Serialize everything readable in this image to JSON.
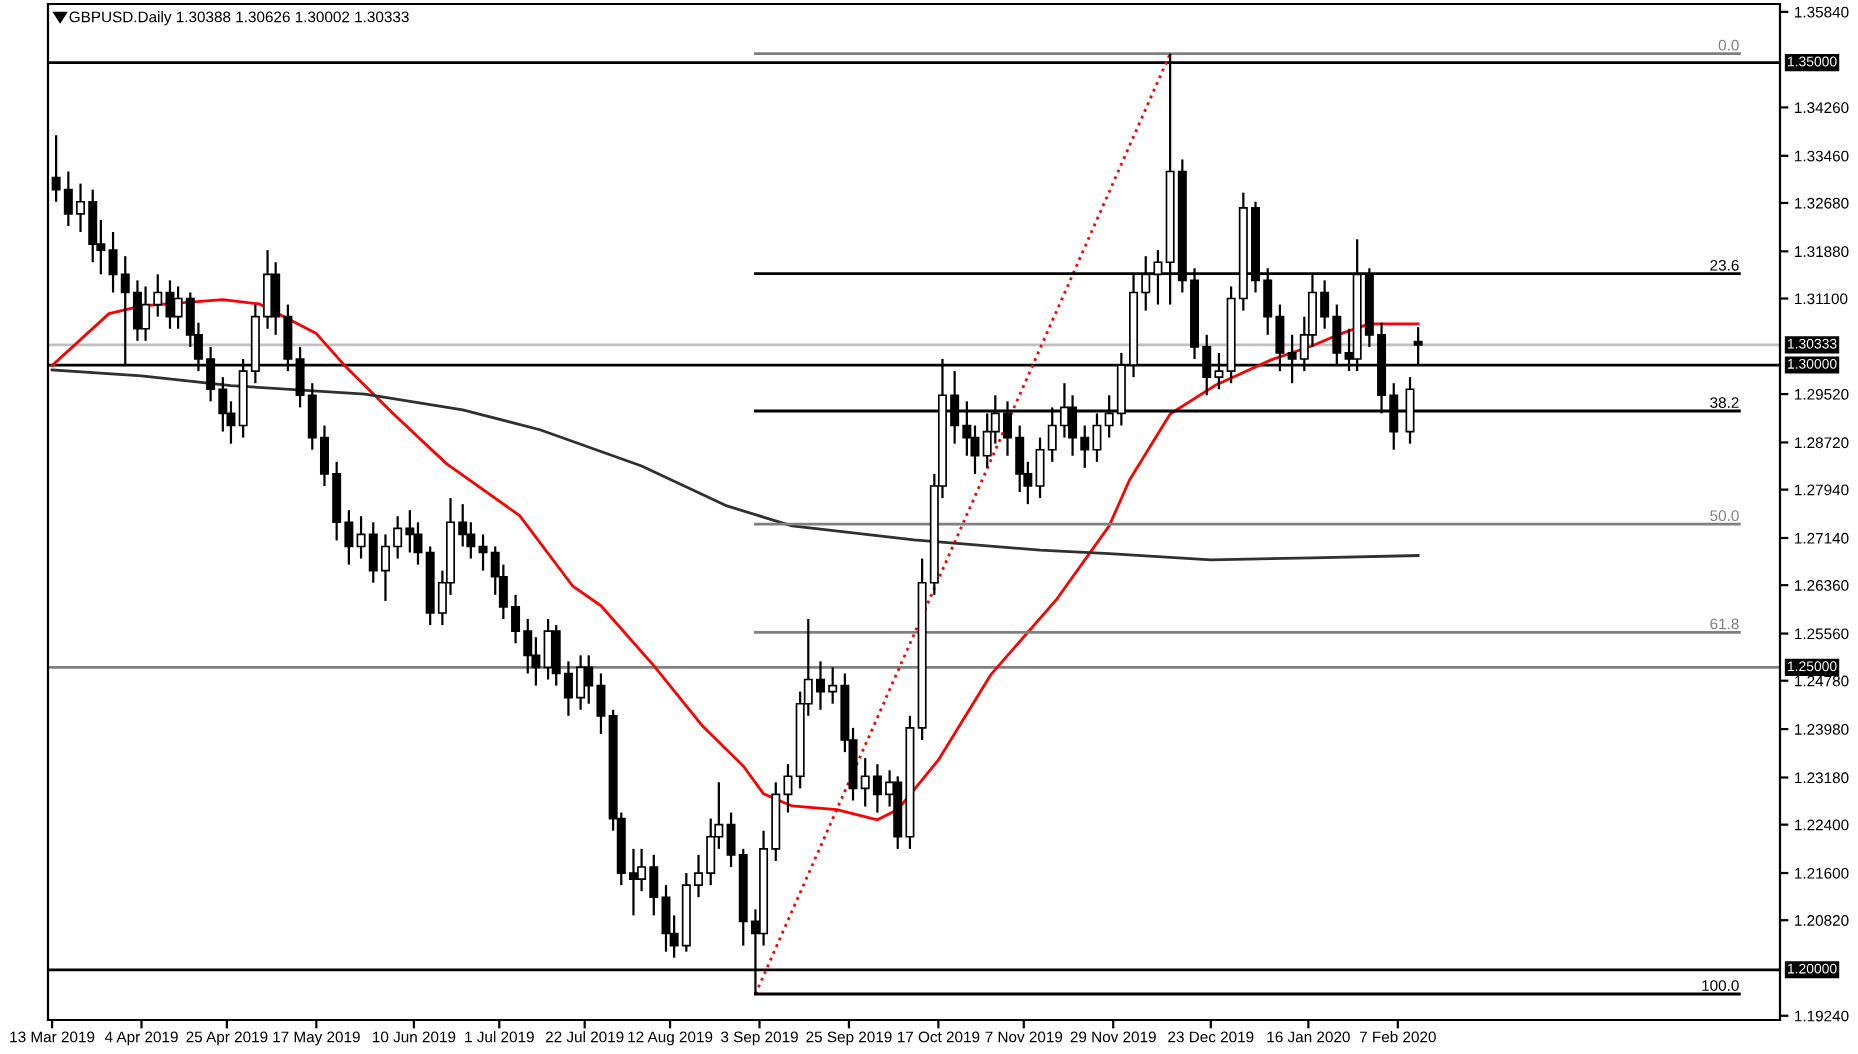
{
  "chart_data": {
    "type": "candlestick",
    "title": "GBPUSD.Daily 1.30388 1.30626 1.30002 1.30333",
    "x": [
      "2019-03-14",
      "2019-03-17",
      "2019-03-20",
      "2019-03-23",
      "2019-03-25",
      "2019-03-28",
      "2019-03-31",
      "2019-04-03",
      "2019-04-05",
      "2019-04-08",
      "2019-04-11",
      "2019-04-13",
      "2019-04-16",
      "2019-04-18",
      "2019-04-21",
      "2019-04-24",
      "2019-04-26",
      "2019-04-29",
      "2019-05-02",
      "2019-05-05",
      "2019-05-07",
      "2019-05-10",
      "2019-05-13",
      "2019-05-16",
      "2019-05-19",
      "2019-05-22",
      "2019-05-25",
      "2019-05-28",
      "2019-05-31",
      "2019-06-03",
      "2019-06-06",
      "2019-06-09",
      "2019-06-11",
      "2019-06-14",
      "2019-06-17",
      "2019-06-19",
      "2019-06-22",
      "2019-06-24",
      "2019-06-27",
      "2019-06-30",
      "2019-07-02",
      "2019-07-05",
      "2019-07-08",
      "2019-07-10",
      "2019-07-13",
      "2019-07-15",
      "2019-07-18",
      "2019-07-21",
      "2019-07-23",
      "2019-07-26",
      "2019-07-29",
      "2019-07-31",
      "2019-08-03",
      "2019-08-05",
      "2019-08-08",
      "2019-08-11",
      "2019-08-13",
      "2019-08-16",
      "2019-08-19",
      "2019-08-22",
      "2019-08-24",
      "2019-08-27",
      "2019-08-30",
      "2019-09-02",
      "2019-09-04",
      "2019-09-07",
      "2019-09-10",
      "2019-09-13",
      "2019-09-15",
      "2019-09-18",
      "2019-09-21",
      "2019-09-24",
      "2019-09-26",
      "2019-09-29",
      "2019-10-02",
      "2019-10-05",
      "2019-10-07",
      "2019-10-10",
      "2019-10-13",
      "2019-10-16",
      "2019-10-18",
      "2019-10-21",
      "2019-10-24",
      "2019-10-26",
      "2019-10-29",
      "2019-10-31",
      "2019-11-03",
      "2019-11-06",
      "2019-11-08",
      "2019-11-11",
      "2019-11-14",
      "2019-11-17",
      "2019-11-19",
      "2019-11-22",
      "2019-11-25",
      "2019-11-28",
      "2019-12-01",
      "2019-12-04",
      "2019-12-07",
      "2019-12-10",
      "2019-12-13",
      "2019-12-16",
      "2019-12-19",
      "2019-12-22",
      "2019-12-25",
      "2019-12-28",
      "2019-12-31",
      "2020-01-03",
      "2020-01-06",
      "2020-01-09",
      "2020-01-12",
      "2020-01-15",
      "2020-01-17",
      "2020-01-20",
      "2020-01-23",
      "2020-01-26",
      "2020-01-28",
      "2020-01-31",
      "2020-02-03",
      "2020-02-06",
      "2020-02-10",
      "2020-02-12"
    ],
    "ohlc": [
      [
        1.331,
        1.338,
        1.327,
        1.329
      ],
      [
        1.329,
        1.332,
        1.323,
        1.325
      ],
      [
        1.325,
        1.33,
        1.322,
        1.327
      ],
      [
        1.327,
        1.329,
        1.317,
        1.32
      ],
      [
        1.32,
        1.324,
        1.315,
        1.319
      ],
      [
        1.319,
        1.322,
        1.312,
        1.315
      ],
      [
        1.315,
        1.318,
        1.3,
        1.312
      ],
      [
        1.312,
        1.314,
        1.304,
        1.306
      ],
      [
        1.306,
        1.313,
        1.304,
        1.31
      ],
      [
        1.31,
        1.315,
        1.308,
        1.312
      ],
      [
        1.312,
        1.314,
        1.306,
        1.308
      ],
      [
        1.308,
        1.313,
        1.306,
        1.311
      ],
      [
        1.311,
        1.312,
        1.303,
        1.305
      ],
      [
        1.305,
        1.307,
        1.299,
        1.301
      ],
      [
        1.301,
        1.303,
        1.294,
        1.296
      ],
      [
        1.296,
        1.298,
        1.289,
        1.292
      ],
      [
        1.292,
        1.294,
        1.287,
        1.29
      ],
      [
        1.29,
        1.301,
        1.288,
        1.299
      ],
      [
        1.299,
        1.31,
        1.297,
        1.308
      ],
      [
        1.308,
        1.319,
        1.306,
        1.315
      ],
      [
        1.315,
        1.317,
        1.305,
        1.308
      ],
      [
        1.308,
        1.31,
        1.299,
        1.301
      ],
      [
        1.301,
        1.303,
        1.293,
        1.295
      ],
      [
        1.295,
        1.297,
        1.286,
        1.288
      ],
      [
        1.288,
        1.29,
        1.28,
        1.282
      ],
      [
        1.282,
        1.284,
        1.271,
        1.274
      ],
      [
        1.274,
        1.276,
        1.267,
        1.27
      ],
      [
        1.27,
        1.275,
        1.268,
        1.272
      ],
      [
        1.272,
        1.274,
        1.264,
        1.266
      ],
      [
        1.266,
        1.272,
        1.261,
        1.27
      ],
      [
        1.27,
        1.275,
        1.268,
        1.273
      ],
      [
        1.273,
        1.276,
        1.269,
        1.272
      ],
      [
        1.272,
        1.274,
        1.267,
        1.269
      ],
      [
        1.269,
        1.27,
        1.257,
        1.259
      ],
      [
        1.259,
        1.266,
        1.257,
        1.264
      ],
      [
        1.264,
        1.278,
        1.262,
        1.274
      ],
      [
        1.274,
        1.277,
        1.27,
        1.272
      ],
      [
        1.272,
        1.274,
        1.268,
        1.27
      ],
      [
        1.27,
        1.272,
        1.266,
        1.269
      ],
      [
        1.269,
        1.27,
        1.262,
        1.265
      ],
      [
        1.265,
        1.267,
        1.258,
        1.26
      ],
      [
        1.26,
        1.262,
        1.254,
        1.256
      ],
      [
        1.256,
        1.258,
        1.249,
        1.252
      ],
      [
        1.252,
        1.255,
        1.247,
        1.25
      ],
      [
        1.25,
        1.258,
        1.248,
        1.256
      ],
      [
        1.256,
        1.257,
        1.247,
        1.249
      ],
      [
        1.249,
        1.251,
        1.242,
        1.245
      ],
      [
        1.245,
        1.252,
        1.243,
        1.25
      ],
      [
        1.25,
        1.252,
        1.244,
        1.247
      ],
      [
        1.247,
        1.249,
        1.239,
        1.242
      ],
      [
        1.242,
        1.243,
        1.223,
        1.225
      ],
      [
        1.225,
        1.226,
        1.214,
        1.216
      ],
      [
        1.216,
        1.22,
        1.209,
        1.215
      ],
      [
        1.215,
        1.22,
        1.213,
        1.217
      ],
      [
        1.217,
        1.219,
        1.209,
        1.212
      ],
      [
        1.212,
        1.214,
        1.203,
        1.206
      ],
      [
        1.206,
        1.209,
        1.202,
        1.204
      ],
      [
        1.204,
        1.216,
        1.203,
        1.214
      ],
      [
        1.214,
        1.219,
        1.212,
        1.216
      ],
      [
        1.216,
        1.225,
        1.214,
        1.222
      ],
      [
        1.222,
        1.231,
        1.22,
        1.224
      ],
      [
        1.224,
        1.226,
        1.217,
        1.219
      ],
      [
        1.219,
        1.22,
        1.204,
        1.208
      ],
      [
        1.208,
        1.21,
        1.196,
        1.206
      ],
      [
        1.206,
        1.223,
        1.204,
        1.22
      ],
      [
        1.22,
        1.231,
        1.218,
        1.229
      ],
      [
        1.229,
        1.234,
        1.226,
        1.232
      ],
      [
        1.232,
        1.246,
        1.23,
        1.244
      ],
      [
        1.244,
        1.258,
        1.242,
        1.248
      ],
      [
        1.248,
        1.251,
        1.243,
        1.246
      ],
      [
        1.246,
        1.25,
        1.244,
        1.247
      ],
      [
        1.247,
        1.249,
        1.236,
        1.238
      ],
      [
        1.238,
        1.24,
        1.228,
        1.23
      ],
      [
        1.23,
        1.235,
        1.227,
        1.232
      ],
      [
        1.232,
        1.234,
        1.226,
        1.229
      ],
      [
        1.229,
        1.233,
        1.227,
        1.231
      ],
      [
        1.231,
        1.232,
        1.22,
        1.222
      ],
      [
        1.222,
        1.242,
        1.22,
        1.24
      ],
      [
        1.24,
        1.268,
        1.238,
        1.264
      ],
      [
        1.264,
        1.282,
        1.262,
        1.28
      ],
      [
        1.28,
        1.301,
        1.278,
        1.295
      ],
      [
        1.295,
        1.299,
        1.287,
        1.29
      ],
      [
        1.29,
        1.294,
        1.285,
        1.288
      ],
      [
        1.288,
        1.29,
        1.282,
        1.285
      ],
      [
        1.285,
        1.292,
        1.283,
        1.289
      ],
      [
        1.289,
        1.295,
        1.287,
        1.292
      ],
      [
        1.292,
        1.294,
        1.285,
        1.288
      ],
      [
        1.288,
        1.29,
        1.279,
        1.282
      ],
      [
        1.282,
        1.284,
        1.277,
        1.28
      ],
      [
        1.28,
        1.288,
        1.278,
        1.286
      ],
      [
        1.286,
        1.293,
        1.284,
        1.29
      ],
      [
        1.29,
        1.297,
        1.288,
        1.293
      ],
      [
        1.293,
        1.295,
        1.285,
        1.288
      ],
      [
        1.288,
        1.29,
        1.283,
        1.286
      ],
      [
        1.286,
        1.292,
        1.284,
        1.29
      ],
      [
        1.29,
        1.295,
        1.288,
        1.292
      ],
      [
        1.292,
        1.302,
        1.29,
        1.3
      ],
      [
        1.3,
        1.315,
        1.298,
        1.312
      ],
      [
        1.312,
        1.318,
        1.309,
        1.315
      ],
      [
        1.315,
        1.319,
        1.31,
        1.317
      ],
      [
        1.317,
        1.3515,
        1.31,
        1.332
      ],
      [
        1.332,
        1.334,
        1.312,
        1.314
      ],
      [
        1.314,
        1.316,
        1.301,
        1.303
      ],
      [
        1.303,
        1.305,
        1.295,
        1.298
      ],
      [
        1.298,
        1.302,
        1.296,
        1.299
      ],
      [
        1.299,
        1.313,
        1.297,
        1.311
      ],
      [
        1.311,
        1.3285,
        1.309,
        1.326
      ],
      [
        1.326,
        1.327,
        1.312,
        1.314
      ],
      [
        1.314,
        1.316,
        1.305,
        1.308
      ],
      [
        1.308,
        1.31,
        1.299,
        1.302
      ],
      [
        1.302,
        1.305,
        1.297,
        1.301
      ],
      [
        1.301,
        1.308,
        1.299,
        1.305
      ],
      [
        1.305,
        1.315,
        1.303,
        1.312
      ],
      [
        1.312,
        1.314,
        1.306,
        1.308
      ],
      [
        1.308,
        1.31,
        1.3,
        1.302
      ],
      [
        1.302,
        1.306,
        1.299,
        1.301
      ],
      [
        1.301,
        1.3208,
        1.299,
        1.315
      ],
      [
        1.315,
        1.316,
        1.303,
        1.305
      ],
      [
        1.305,
        1.307,
        1.292,
        1.295
      ],
      [
        1.295,
        1.297,
        1.286,
        1.289
      ],
      [
        1.289,
        1.298,
        1.287,
        1.296
      ],
      [
        1.30388,
        1.30626,
        1.30002,
        1.30333
      ]
    ],
    "series": [
      {
        "type": "line",
        "color": "#ff0000",
        "x": [
          "2019-03-13",
          "2019-03-27",
          "2019-04-04",
          "2019-04-24",
          "2019-05-03",
          "2019-05-17",
          "2019-05-24",
          "2019-06-05",
          "2019-06-18",
          "2019-07-06",
          "2019-07-19",
          "2019-07-26",
          "2019-08-08",
          "2019-08-20",
          "2019-08-30",
          "2019-09-04",
          "2019-09-11",
          "2019-09-22",
          "2019-10-02",
          "2019-10-07",
          "2019-10-17",
          "2019-10-30",
          "2019-11-15",
          "2019-11-28",
          "2019-12-03",
          "2019-12-13",
          "2019-12-24",
          "2020-01-07",
          "2020-01-17",
          "2020-01-24",
          "2020-01-31",
          "2020-02-12"
        ],
        "values": [
          1.2999,
          1.3085,
          1.3098,
          1.3108,
          1.3101,
          1.3052,
          1.2999,
          1.2919,
          1.2837,
          1.2751,
          1.2635,
          1.2602,
          1.2503,
          1.2403,
          1.2337,
          1.2291,
          1.2271,
          1.2265,
          1.2248,
          1.2265,
          1.2347,
          1.2489,
          1.2612,
          1.2734,
          1.281,
          1.2919,
          1.2966,
          1.3009,
          1.3032,
          1.3052,
          1.3068,
          1.3068
        ]
      },
      {
        "type": "line",
        "color": "#303030",
        "x": [
          "2019-03-13",
          "2019-04-04",
          "2019-04-26",
          "2019-05-29",
          "2019-06-22",
          "2019-07-11",
          "2019-08-05",
          "2019-08-26",
          "2019-09-11",
          "2019-10-11",
          "2019-11-11",
          "2019-11-28",
          "2019-12-23",
          "2020-01-17",
          "2020-02-12"
        ],
        "values": [
          1.2992,
          1.2982,
          1.2966,
          1.2952,
          1.2926,
          1.2893,
          1.2833,
          1.2767,
          1.2734,
          1.2711,
          1.2694,
          1.2688,
          1.2678,
          1.2681,
          1.2685
        ]
      },
      {
        "type": "line",
        "color": "#ff0000",
        "line_style": "dotted",
        "x": [
          "2019-09-02",
          "2019-12-13"
        ],
        "values": [
          1.196,
          1.3515
        ]
      },
      {
        "type": "line",
        "name": "0.0",
        "color": "#808080",
        "x": [
          "2019-09-02",
          "2020-05-01"
        ],
        "values": [
          1.3515,
          1.3515
        ]
      },
      {
        "type": "line",
        "name": "23.6",
        "color": "#000000",
        "x": [
          "2019-09-02",
          "2020-05-01"
        ],
        "values": [
          1.3151,
          1.3151
        ]
      },
      {
        "type": "line",
        "name": "38.2",
        "color": "#000000",
        "x": [
          "2019-09-02",
          "2020-05-01"
        ],
        "values": [
          1.2924,
          1.2924
        ]
      },
      {
        "type": "line",
        "name": "50.0",
        "color": "#808080",
        "x": [
          "2019-09-02",
          "2020-05-01"
        ],
        "values": [
          1.2737,
          1.2737
        ]
      },
      {
        "type": "line",
        "name": "61.8",
        "color": "#808080",
        "x": [
          "2019-09-02",
          "2020-05-01"
        ],
        "values": [
          1.2558,
          1.2558
        ]
      },
      {
        "type": "line",
        "name": "100.0",
        "color": "#000000",
        "x": [
          "2019-09-02",
          "2020-05-01"
        ],
        "values": [
          1.196,
          1.196
        ]
      }
    ],
    "ref_lines": [
      {
        "axis": "y",
        "value": 1.35,
        "label": "1.35000",
        "color": "#000000"
      },
      {
        "axis": "y",
        "value": 1.30333,
        "label": "1.30333",
        "color": "#c0c0c0"
      },
      {
        "axis": "y",
        "value": 1.3,
        "label": "1.30000",
        "color": "#000000"
      },
      {
        "axis": "y",
        "value": 1.25,
        "label": "1.25000",
        "color": "#808080"
      },
      {
        "axis": "y",
        "value": 1.2,
        "label": "1.20000",
        "color": "#000000"
      }
    ],
    "xlim": [
      "2019-03-12",
      "2020-05-11"
    ],
    "xticks": [
      {
        "value": "2019-03-13",
        "label": "13 Mar 2019"
      },
      {
        "value": "2019-04-04",
        "label": "4 Apr 2019"
      },
      {
        "value": "2019-04-25",
        "label": "25 Apr 2019"
      },
      {
        "value": "2019-05-17",
        "label": "17 May 2019"
      },
      {
        "value": "2019-06-10",
        "label": "10 Jun 2019"
      },
      {
        "value": "2019-07-01",
        "label": "1 Jul 2019"
      },
      {
        "value": "2019-07-22",
        "label": "22 Jul 2019"
      },
      {
        "value": "2019-08-12",
        "label": "12 Aug 2019"
      },
      {
        "value": "2019-09-03",
        "label": "3 Sep 2019"
      },
      {
        "value": "2019-09-25",
        "label": "25 Sep 2019"
      },
      {
        "value": "2019-10-17",
        "label": "17 Oct 2019"
      },
      {
        "value": "2019-11-07",
        "label": "7 Nov 2019"
      },
      {
        "value": "2019-11-29",
        "label": "29 Nov 2019"
      },
      {
        "value": "2019-12-23",
        "label": "23 Dec 2019"
      },
      {
        "value": "2020-01-16",
        "label": "16 Jan 2020"
      },
      {
        "value": "2020-02-07",
        "label": "7 Feb 2020"
      }
    ],
    "ylim": [
      1.1917,
      1.3597
    ],
    "yticks": [
      {
        "value": 1.3584,
        "label": "1.35840"
      },
      {
        "value": 1.3426,
        "label": "1.34260"
      },
      {
        "value": 1.3346,
        "label": "1.33460"
      },
      {
        "value": 1.3268,
        "label": "1.32680"
      },
      {
        "value": 1.3188,
        "label": "1.31880"
      },
      {
        "value": 1.311,
        "label": "1.31100"
      },
      {
        "value": 1.2952,
        "label": "1.29520"
      },
      {
        "value": 1.2872,
        "label": "1.28720"
      },
      {
        "value": 1.2794,
        "label": "1.27940"
      },
      {
        "value": 1.2714,
        "label": "1.27140"
      },
      {
        "value": 1.2636,
        "label": "1.26360"
      },
      {
        "value": 1.2556,
        "label": "1.25560"
      },
      {
        "value": 1.2478,
        "label": "1.24780"
      },
      {
        "value": 1.2398,
        "label": "1.23980"
      },
      {
        "value": 1.2318,
        "label": "1.23180"
      },
      {
        "value": 1.224,
        "label": "1.22400"
      },
      {
        "value": 1.216,
        "label": "1.21600"
      },
      {
        "value": 1.2082,
        "label": "1.20820"
      },
      {
        "value": 1.1924,
        "label": "1.19240"
      }
    ],
    "grid": false,
    "legend": false
  }
}
